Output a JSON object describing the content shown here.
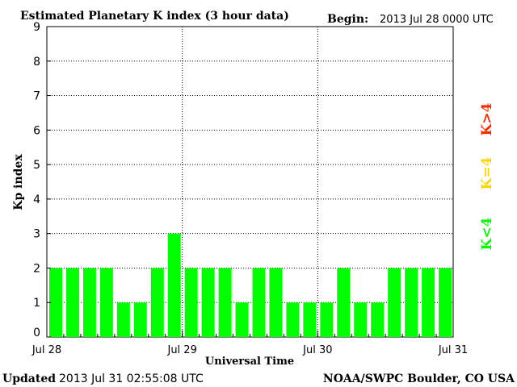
{
  "header": {
    "title": "Estimated Planetary K index (3 hour data)",
    "begin_label": "Begin:",
    "begin_value": "2013 Jul 28 0000 UTC"
  },
  "footer": {
    "updated_label": "Updated",
    "updated_value": "2013 Jul 31 02:55:08 UTC",
    "source": "NOAA/SWPC Boulder, CO USA"
  },
  "legend": {
    "items": [
      {
        "label": "K<4",
        "color": "#00ff00"
      },
      {
        "label": "K=4",
        "color": "#ffd700"
      },
      {
        "label": "K>4",
        "color": "#ff2a00"
      }
    ]
  },
  "chart_data": {
    "type": "bar",
    "title": "Estimated Planetary K index (3 hour data)",
    "xlabel": "Universal Time",
    "ylabel": "Kp index",
    "ylim": [
      0,
      9
    ],
    "yticks": [
      0,
      1,
      2,
      3,
      4,
      5,
      6,
      7,
      8,
      9
    ],
    "xtick_labels": [
      "Jul 28",
      "Jul 29",
      "Jul 30",
      "Jul 31"
    ],
    "grid": "dotted at day boundaries and integer Kp levels",
    "bar_color": "#00ff00",
    "values": [
      2,
      2,
      2,
      2,
      1,
      1,
      2,
      3,
      2,
      2,
      2,
      1,
      2,
      2,
      1,
      1,
      1,
      2,
      1,
      1,
      2,
      2,
      2,
      2
    ]
  }
}
